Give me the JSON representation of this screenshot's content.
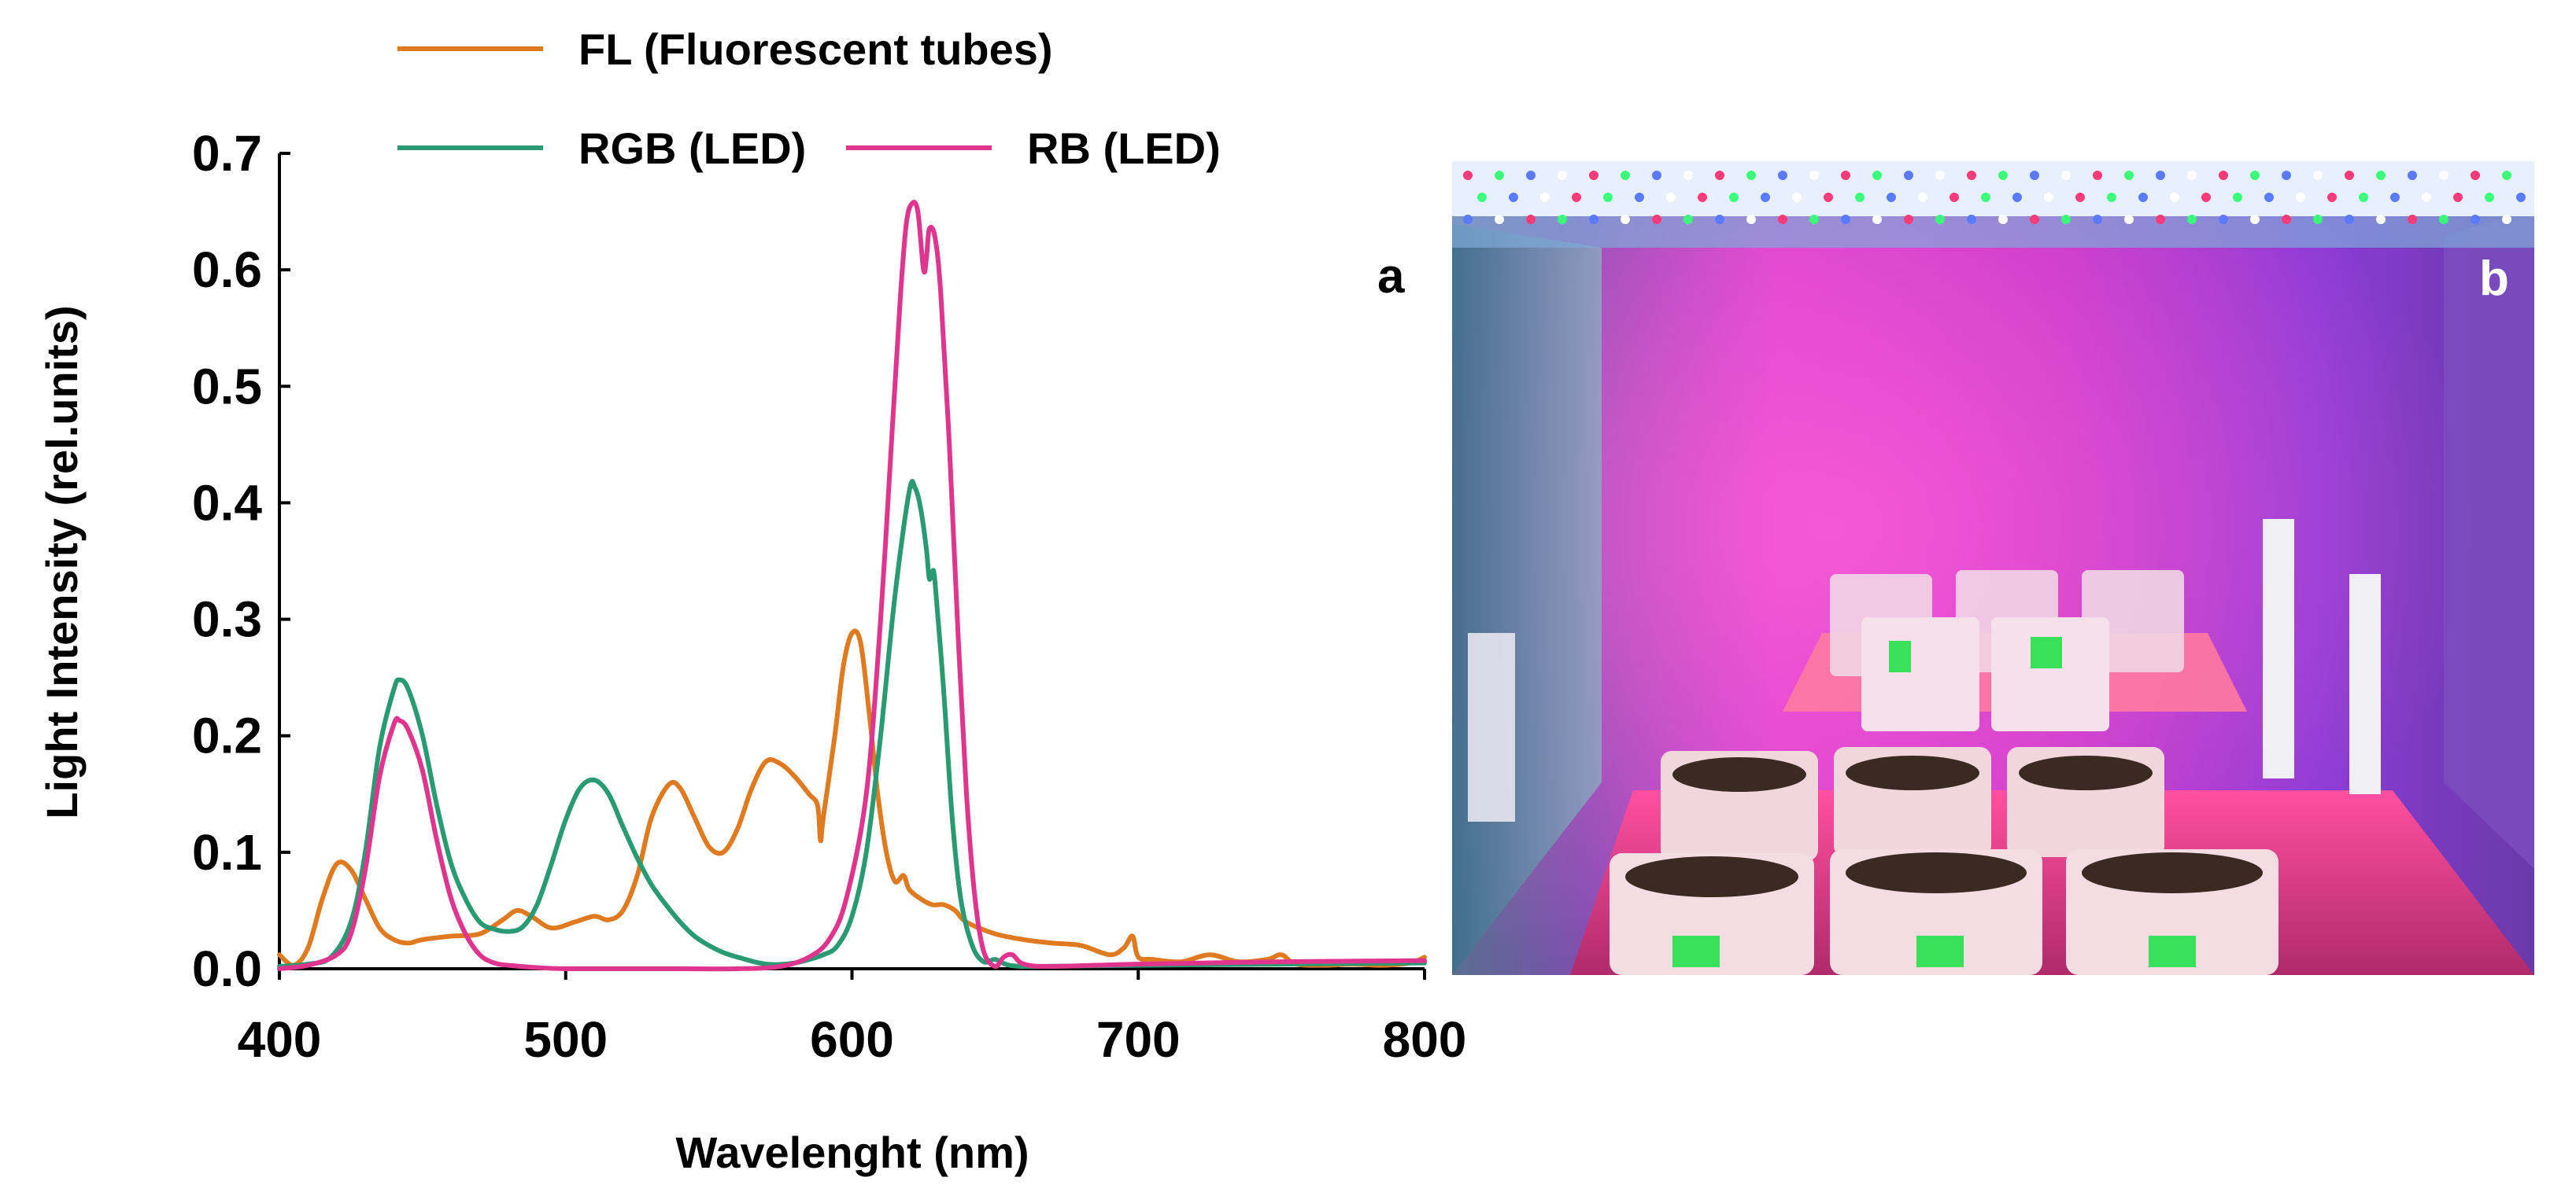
{
  "chart_data": {
    "type": "line",
    "xlabel": "Wavelenght (nm)",
    "ylabel": "Light Intensity (rel.units)",
    "xlim": [
      400,
      800
    ],
    "ylim": [
      0,
      0.7
    ],
    "x_ticks": [
      "400",
      "500",
      "600",
      "700",
      "800"
    ],
    "x_tick_values": [
      400,
      500,
      600,
      700,
      800
    ],
    "y_ticks": [
      "0.0",
      "0.1",
      "0.2",
      "0.3",
      "0.4",
      "0.5",
      "0.6",
      "0.7"
    ],
    "y_tick_values": [
      0,
      0.1,
      0.2,
      0.3,
      0.4,
      0.5,
      0.6,
      0.7
    ],
    "panel_label": "a",
    "series": [
      {
        "name": "FL (Fluorescent tubes)",
        "color": "#e07a20",
        "points": [
          [
            400,
            0.012
          ],
          [
            405,
            0.003
          ],
          [
            410,
            0.018
          ],
          [
            415,
            0.06
          ],
          [
            420,
            0.09
          ],
          [
            425,
            0.085
          ],
          [
            430,
            0.06
          ],
          [
            435,
            0.035
          ],
          [
            440,
            0.025
          ],
          [
            445,
            0.022
          ],
          [
            450,
            0.025
          ],
          [
            460,
            0.028
          ],
          [
            470,
            0.03
          ],
          [
            478,
            0.042
          ],
          [
            483,
            0.05
          ],
          [
            488,
            0.045
          ],
          [
            495,
            0.035
          ],
          [
            503,
            0.04
          ],
          [
            510,
            0.045
          ],
          [
            515,
            0.042
          ],
          [
            520,
            0.05
          ],
          [
            525,
            0.08
          ],
          [
            530,
            0.13
          ],
          [
            536,
            0.158
          ],
          [
            540,
            0.155
          ],
          [
            545,
            0.13
          ],
          [
            550,
            0.105
          ],
          [
            555,
            0.1
          ],
          [
            560,
            0.12
          ],
          [
            565,
            0.155
          ],
          [
            570,
            0.178
          ],
          [
            575,
            0.176
          ],
          [
            580,
            0.165
          ],
          [
            585,
            0.15
          ],
          [
            588,
            0.14
          ],
          [
            589,
            0.11
          ],
          [
            590,
            0.13
          ],
          [
            594,
            0.2
          ],
          [
            597,
            0.26
          ],
          [
            600,
            0.288
          ],
          [
            603,
            0.28
          ],
          [
            606,
            0.22
          ],
          [
            609,
            0.15
          ],
          [
            612,
            0.1
          ],
          [
            615,
            0.075
          ],
          [
            618,
            0.08
          ],
          [
            620,
            0.068
          ],
          [
            624,
            0.06
          ],
          [
            628,
            0.055
          ],
          [
            632,
            0.055
          ],
          [
            636,
            0.05
          ],
          [
            640,
            0.04
          ],
          [
            650,
            0.03
          ],
          [
            660,
            0.025
          ],
          [
            670,
            0.022
          ],
          [
            680,
            0.02
          ],
          [
            690,
            0.012
          ],
          [
            695,
            0.018
          ],
          [
            698,
            0.028
          ],
          [
            700,
            0.01
          ],
          [
            705,
            0.008
          ],
          [
            715,
            0.006
          ],
          [
            725,
            0.012
          ],
          [
            735,
            0.006
          ],
          [
            745,
            0.008
          ],
          [
            750,
            0.012
          ],
          [
            755,
            0.004
          ],
          [
            765,
            0.003
          ],
          [
            775,
            0.004
          ],
          [
            785,
            0.003
          ],
          [
            795,
            0.005
          ],
          [
            800,
            0.01
          ]
        ]
      },
      {
        "name": "RGB (LED)",
        "color": "#2a9a73",
        "points": [
          [
            400,
            0.002
          ],
          [
            410,
            0.004
          ],
          [
            418,
            0.01
          ],
          [
            425,
            0.04
          ],
          [
            430,
            0.1
          ],
          [
            435,
            0.19
          ],
          [
            440,
            0.24
          ],
          [
            442,
            0.248
          ],
          [
            445,
            0.24
          ],
          [
            450,
            0.2
          ],
          [
            455,
            0.14
          ],
          [
            460,
            0.09
          ],
          [
            465,
            0.06
          ],
          [
            470,
            0.04
          ],
          [
            475,
            0.034
          ],
          [
            480,
            0.032
          ],
          [
            485,
            0.036
          ],
          [
            490,
            0.055
          ],
          [
            495,
            0.09
          ],
          [
            500,
            0.128
          ],
          [
            505,
            0.155
          ],
          [
            510,
            0.162
          ],
          [
            515,
            0.15
          ],
          [
            520,
            0.122
          ],
          [
            525,
            0.095
          ],
          [
            530,
            0.072
          ],
          [
            535,
            0.055
          ],
          [
            540,
            0.04
          ],
          [
            545,
            0.028
          ],
          [
            550,
            0.02
          ],
          [
            555,
            0.014
          ],
          [
            560,
            0.01
          ],
          [
            570,
            0.004
          ],
          [
            580,
            0.005
          ],
          [
            590,
            0.012
          ],
          [
            595,
            0.02
          ],
          [
            600,
            0.045
          ],
          [
            605,
            0.1
          ],
          [
            610,
            0.2
          ],
          [
            615,
            0.32
          ],
          [
            620,
            0.41
          ],
          [
            622,
            0.413
          ],
          [
            624,
            0.395
          ],
          [
            626,
            0.36
          ],
          [
            627,
            0.335
          ],
          [
            628,
            0.34
          ],
          [
            629,
            0.332
          ],
          [
            632,
            0.24
          ],
          [
            635,
            0.13
          ],
          [
            638,
            0.06
          ],
          [
            642,
            0.02
          ],
          [
            646,
            0.006
          ],
          [
            650,
            0.008
          ],
          [
            655,
            0.003
          ],
          [
            665,
            0.002
          ],
          [
            700,
            0.003
          ],
          [
            750,
            0.004
          ],
          [
            800,
            0.005
          ]
        ]
      },
      {
        "name": "RB (LED)",
        "color": "#e0358f",
        "points": [
          [
            400,
            0.0
          ],
          [
            410,
            0.003
          ],
          [
            420,
            0.012
          ],
          [
            425,
            0.03
          ],
          [
            430,
            0.085
          ],
          [
            435,
            0.165
          ],
          [
            440,
            0.21
          ],
          [
            442,
            0.213
          ],
          [
            445,
            0.205
          ],
          [
            450,
            0.17
          ],
          [
            455,
            0.11
          ],
          [
            460,
            0.06
          ],
          [
            465,
            0.03
          ],
          [
            470,
            0.012
          ],
          [
            475,
            0.005
          ],
          [
            480,
            0.003
          ],
          [
            490,
            0.001
          ],
          [
            500,
            0.0
          ],
          [
            520,
            0.0
          ],
          [
            540,
            0.0
          ],
          [
            560,
            0.0
          ],
          [
            575,
            0.002
          ],
          [
            585,
            0.01
          ],
          [
            592,
            0.025
          ],
          [
            598,
            0.06
          ],
          [
            605,
            0.15
          ],
          [
            610,
            0.3
          ],
          [
            614,
            0.46
          ],
          [
            617,
            0.58
          ],
          [
            619,
            0.64
          ],
          [
            621,
            0.657
          ],
          [
            623,
            0.65
          ],
          [
            625,
            0.6
          ],
          [
            626,
            0.61
          ],
          [
            627,
            0.635
          ],
          [
            629,
            0.628
          ],
          [
            631,
            0.58
          ],
          [
            634,
            0.45
          ],
          [
            637,
            0.29
          ],
          [
            640,
            0.15
          ],
          [
            643,
            0.06
          ],
          [
            646,
            0.015
          ],
          [
            650,
            0.002
          ],
          [
            653,
            0.01
          ],
          [
            656,
            0.012
          ],
          [
            660,
            0.004
          ],
          [
            670,
            0.002
          ],
          [
            700,
            0.004
          ],
          [
            750,
            0.006
          ],
          [
            800,
            0.007
          ]
        ]
      }
    ]
  },
  "photo": {
    "panel_label": "b",
    "description_colors": {
      "led_strip": "#e8f0ff",
      "wall_magenta": "#d63fc6",
      "wall_purple": "#8a3bd6",
      "tray": "#e0708a",
      "soil": "#3a2a22",
      "label_green": "#39e05a"
    }
  }
}
